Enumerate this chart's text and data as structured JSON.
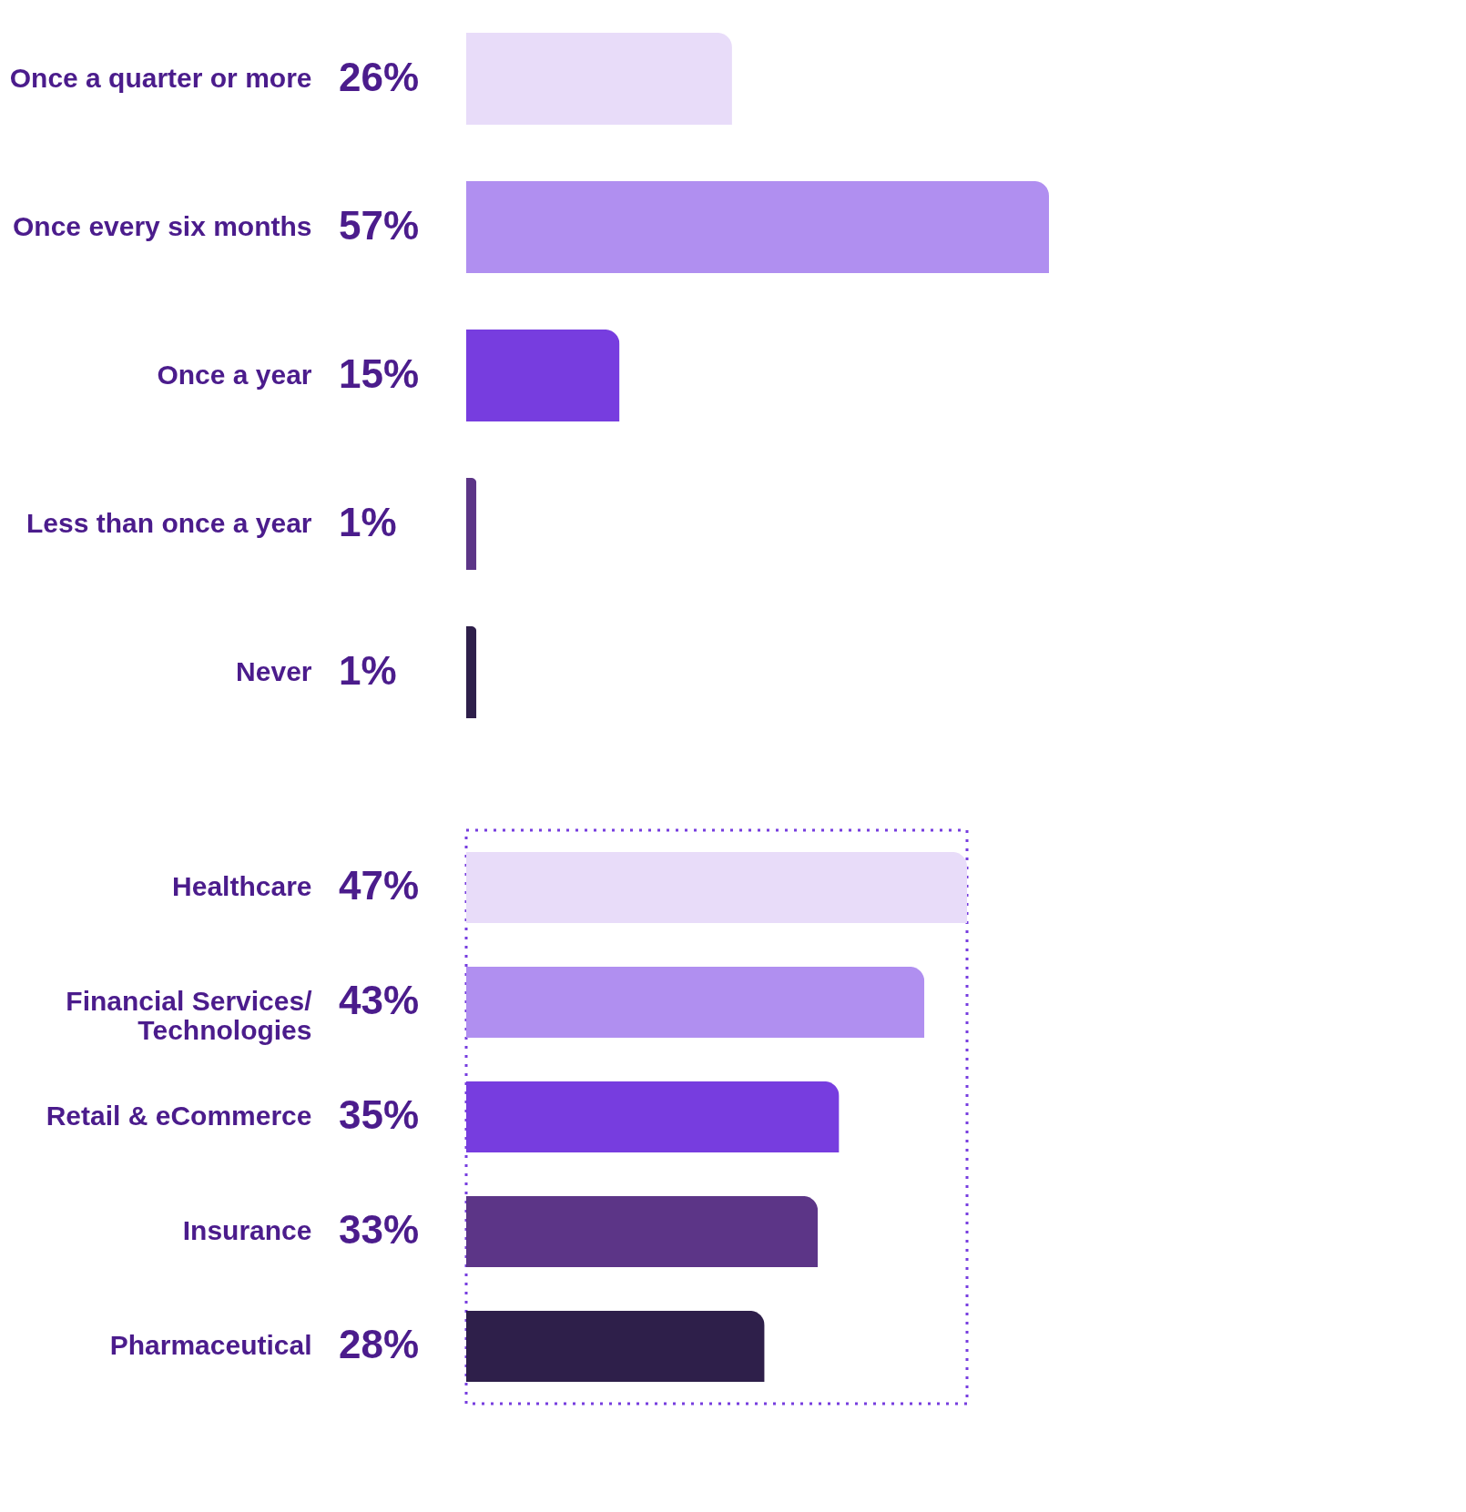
{
  "chart_data": [
    {
      "type": "bar",
      "orientation": "horizontal",
      "categories": [
        "Once a quarter or more",
        "Once every six months",
        "Once a year",
        "Less than once a year",
        "Never"
      ],
      "values": [
        26,
        57,
        15,
        1,
        1
      ],
      "value_labels": [
        "26%",
        "57%",
        "15%",
        "1%",
        "1%"
      ],
      "colors": [
        "#e8dcf9",
        "#b08ff0",
        "#773ddf",
        "#5c3587",
        "#2e1f4a"
      ],
      "grid": false,
      "legend": false
    },
    {
      "type": "bar",
      "orientation": "horizontal",
      "categories": [
        "Healthcare",
        "Financial Services/ Technologies",
        "Retail & eCommerce",
        "Insurance",
        "Pharmaceutical"
      ],
      "values": [
        47,
        43,
        35,
        33,
        28
      ],
      "value_labels": [
        "47%",
        "43%",
        "35%",
        "33%",
        "28%"
      ],
      "colors": [
        "#e8dcf9",
        "#b08ff0",
        "#773ddf",
        "#5c3587",
        "#2e1f4a"
      ],
      "grid": false,
      "legend": false
    }
  ]
}
